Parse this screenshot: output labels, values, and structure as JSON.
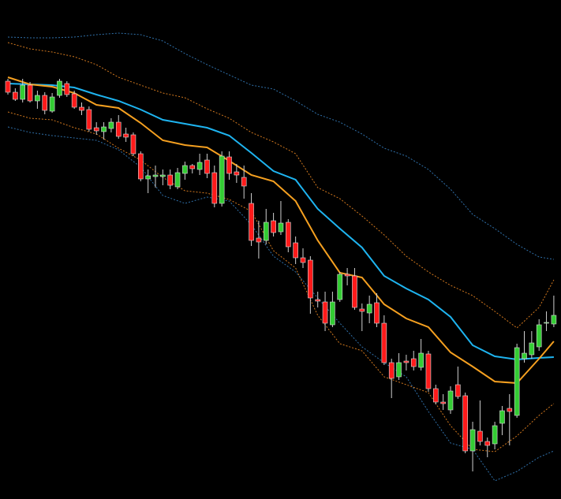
{
  "chart_data": {
    "type": "candlestick",
    "ylim": [
      0,
      633
    ],
    "up_color": "#33cc33",
    "down_color": "#ff1a1a",
    "open": [
      530,
      516,
      507,
      525,
      505,
      512,
      492,
      512,
      527,
      514,
      497,
      494,
      471,
      466,
      470,
      478,
      463,
      462,
      438,
      406,
      409,
      409,
      411,
      396,
      413,
      423,
      418,
      430,
      414,
      375,
      434,
      415,
      408,
      375,
      331,
      328,
      353,
      339,
      351,
      325,
      306,
      303,
      253,
      250,
      221,
      253,
      285,
      283,
      241,
      236,
      249,
      223,
      173,
      155,
      175,
      178,
      167,
      184,
      140,
      123,
      113,
      145,
      131,
      61,
      86,
      73,
      70,
      96,
      115,
      106,
      178,
      183,
      193,
      223,
      222
    ],
    "high": [
      533,
      521,
      533,
      529,
      518,
      516,
      515,
      533,
      530,
      518,
      503,
      498,
      478,
      478,
      483,
      487,
      471,
      465,
      441,
      418,
      423,
      418,
      418,
      420,
      428,
      425,
      438,
      438,
      423,
      441,
      441,
      425,
      423,
      388,
      353,
      368,
      363,
      378,
      355,
      333,
      318,
      308,
      263,
      263,
      263,
      288,
      293,
      293,
      248,
      258,
      261,
      233,
      178,
      185,
      183,
      188,
      203,
      188,
      145,
      133,
      143,
      168,
      135,
      98,
      125,
      78,
      98,
      118,
      133,
      197,
      213,
      213,
      228,
      238,
      258
    ],
    "low": [
      513,
      505,
      503,
      503,
      495,
      488,
      490,
      509,
      510,
      495,
      487,
      466,
      462,
      456,
      465,
      457,
      453,
      435,
      403,
      388,
      395,
      398,
      393,
      393,
      405,
      413,
      411,
      407,
      370,
      371,
      405,
      401,
      381,
      321,
      305,
      323,
      333,
      335,
      313,
      298,
      293,
      235,
      243,
      213,
      218,
      250,
      271,
      240,
      213,
      223,
      218,
      170,
      128,
      151,
      163,
      163,
      163,
      136,
      120,
      113,
      108,
      127,
      58,
      35,
      68,
      53,
      63,
      81,
      68,
      103,
      173,
      178,
      188,
      213,
      218
    ],
    "close": [
      516,
      507,
      525,
      505,
      512,
      493,
      510,
      530,
      513,
      497,
      493,
      469,
      467,
      472,
      478,
      460,
      459,
      438,
      406,
      410,
      411,
      411,
      398,
      414,
      423,
      419,
      427,
      413,
      375,
      435,
      413,
      411,
      397,
      328,
      326,
      351,
      338,
      350,
      320,
      306,
      300,
      255,
      251,
      223,
      250,
      285,
      283,
      243,
      238,
      247,
      223,
      173,
      153,
      173,
      173,
      168,
      185,
      140,
      123,
      121,
      137,
      130,
      61,
      88,
      73,
      68,
      93,
      112,
      111,
      192,
      185,
      198,
      221,
      224,
      233
    ],
    "overlay_x": [
      0,
      3,
      6,
      9,
      12,
      15,
      18,
      21,
      24,
      27,
      30,
      33,
      36,
      39,
      42,
      45,
      48,
      51,
      54,
      57,
      60,
      63,
      66,
      69,
      72,
      74
    ],
    "overlays": [
      {
        "color": "#2f6fa8",
        "dash": true,
        "values": [
          586,
          585,
          585,
          586,
          589,
          591,
          589,
          581,
          565,
          551,
          538,
          525,
          520,
          505,
          488,
          478,
          463,
          445,
          435,
          418,
          393,
          361,
          343,
          323,
          307,
          304
        ]
      },
      {
        "color": "#2f6fa8",
        "dash": true,
        "values": [
          472,
          465,
          461,
          458,
          455,
          443,
          421,
          385,
          375,
          383,
          378,
          348,
          308,
          288,
          255,
          223,
          193,
          173,
          155,
          111,
          71,
          63,
          23,
          35,
          53,
          61
        ]
      },
      {
        "color": "#d2781e",
        "dash": true,
        "values": [
          579,
          571,
          567,
          561,
          551,
          535,
          525,
          515,
          509,
          495,
          483,
          465,
          453,
          438,
          395,
          381,
          359,
          335,
          308,
          288,
          271,
          258,
          238,
          217,
          243,
          278
        ]
      },
      {
        "color": "#d2781e",
        "dash": true,
        "values": [
          491,
          483,
          481,
          471,
          463,
          445,
          430,
          408,
          391,
          388,
          380,
          365,
          315,
          293,
          233,
          197,
          188,
          155,
          145,
          135,
          93,
          63,
          60,
          80,
          106,
          121
        ]
      },
      {
        "color": "#1eb4f0",
        "dash": false,
        "values": [
          527,
          526,
          525,
          522,
          513,
          505,
          494,
          481,
          476,
          471,
          461,
          439,
          416,
          405,
          368,
          343,
          319,
          283,
          267,
          253,
          231,
          195,
          181,
          177,
          179,
          180
        ]
      },
      {
        "color": "#f5a020",
        "dash": false,
        "values": [
          535,
          526,
          523,
          515,
          500,
          496,
          477,
          455,
          449,
          446,
          429,
          411,
          403,
          378,
          328,
          287,
          281,
          247,
          229,
          218,
          186,
          168,
          149,
          147,
          178,
          200
        ]
      }
    ]
  }
}
